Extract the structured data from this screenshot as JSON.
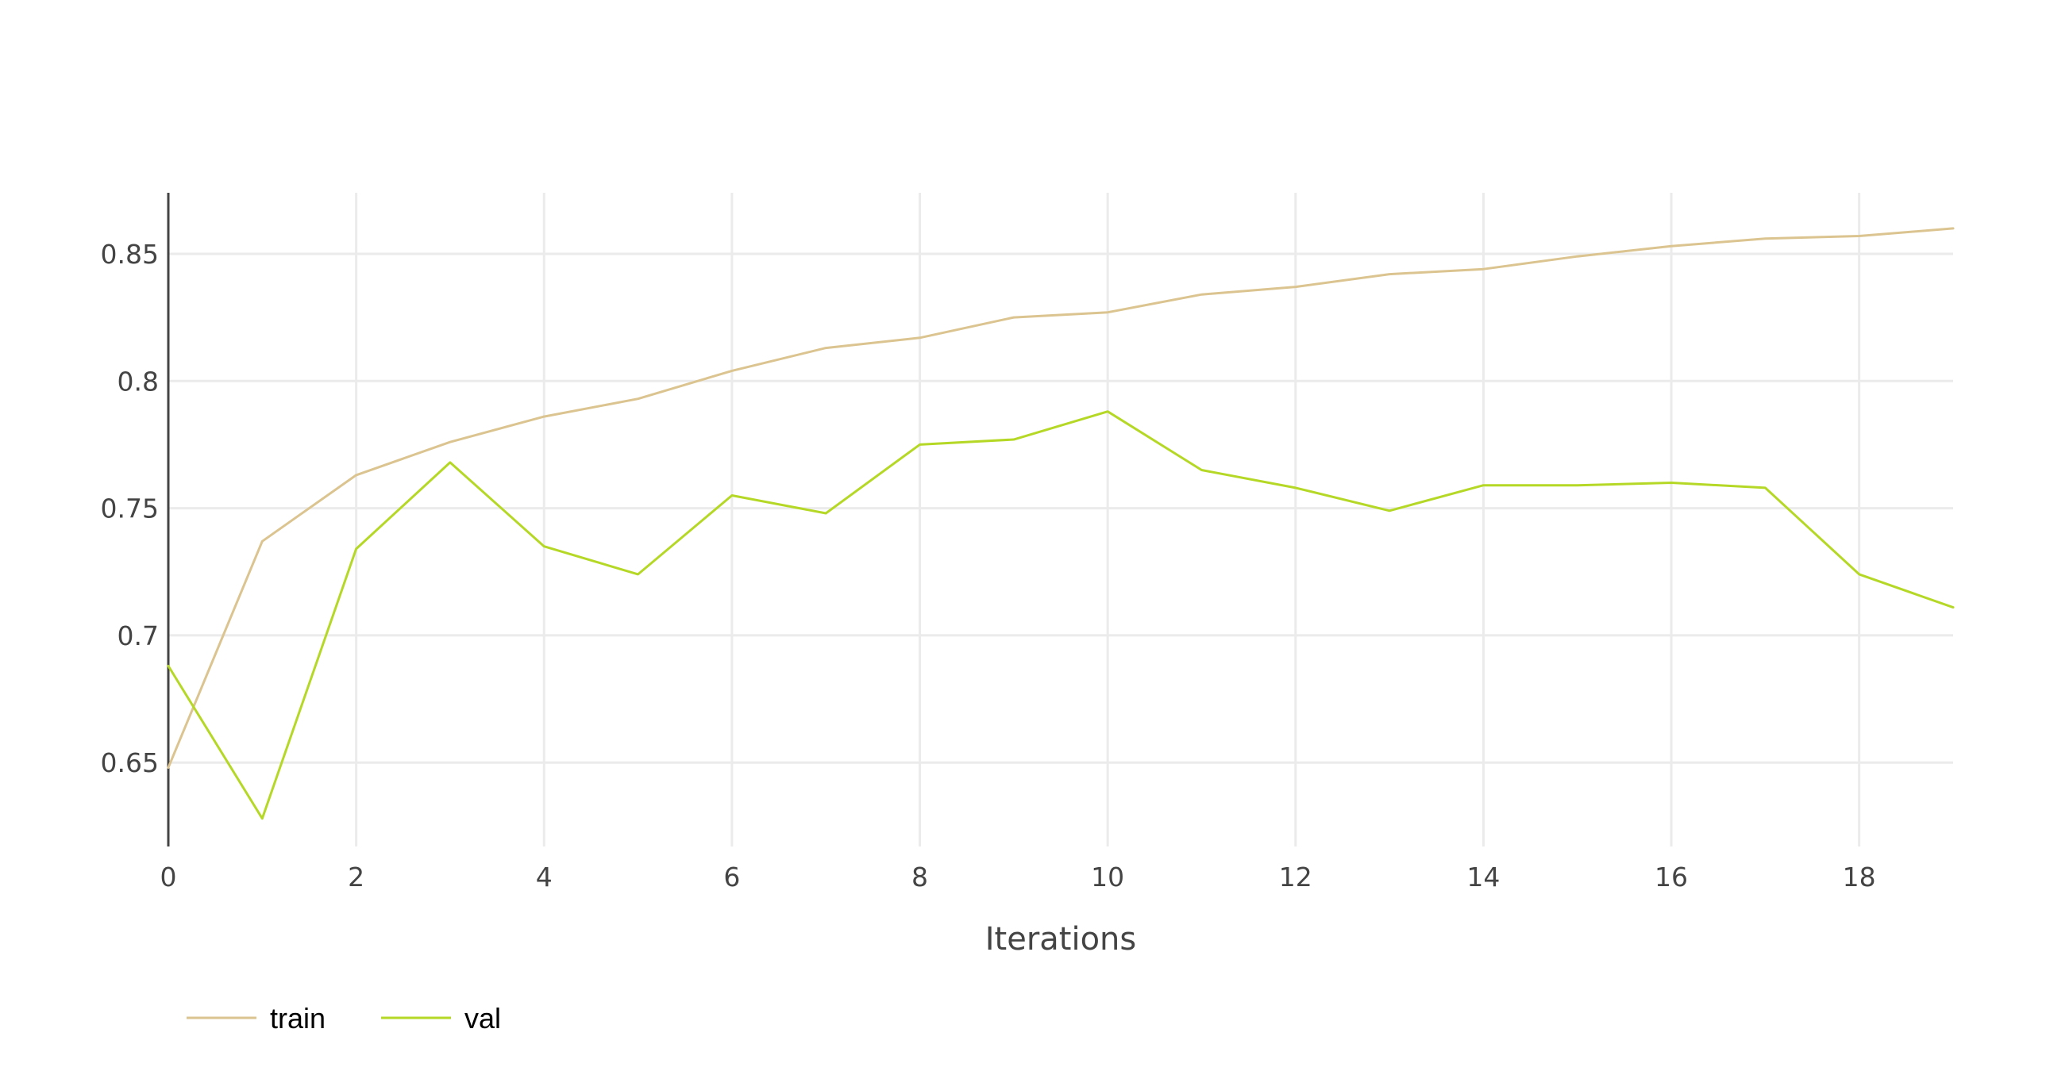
{
  "colors": {
    "background": "#ffffff",
    "grid": "#ebebeb",
    "axis": "#444444",
    "text": "#444444"
  },
  "chart_data": {
    "type": "line",
    "title": "",
    "xlabel": "Iterations",
    "ylabel": "",
    "xlim": [
      0,
      19
    ],
    "ylim": [
      0.617,
      0.874
    ],
    "x_ticks": [
      0,
      2,
      4,
      6,
      8,
      10,
      12,
      14,
      16,
      18
    ],
    "x_tick_labels": [
      "0",
      "2",
      "4",
      "6",
      "8",
      "10",
      "12",
      "14",
      "16",
      "18"
    ],
    "y_ticks": [
      0.65,
      0.7,
      0.75,
      0.8,
      0.85
    ],
    "y_tick_labels": [
      "0.65",
      "0.7",
      "0.75",
      "0.8",
      "0.85"
    ],
    "grid": true,
    "legend_position": "bottom-left",
    "x": [
      0,
      1,
      2,
      3,
      4,
      5,
      6,
      7,
      8,
      9,
      10,
      11,
      12,
      13,
      14,
      15,
      16,
      17,
      18,
      19
    ],
    "series": [
      {
        "name": "train",
        "color": "#dbc48f",
        "values": [
          0.648,
          0.737,
          0.763,
          0.776,
          0.786,
          0.793,
          0.804,
          0.813,
          0.817,
          0.825,
          0.827,
          0.834,
          0.837,
          0.842,
          0.844,
          0.849,
          0.853,
          0.856,
          0.857,
          0.86
        ]
      },
      {
        "name": "val",
        "color": "#b5d826",
        "values": [
          0.688,
          0.628,
          0.734,
          0.768,
          0.735,
          0.724,
          0.755,
          0.748,
          0.775,
          0.777,
          0.788,
          0.765,
          0.758,
          0.749,
          0.759,
          0.759,
          0.76,
          0.758,
          0.724,
          0.711
        ]
      }
    ]
  }
}
